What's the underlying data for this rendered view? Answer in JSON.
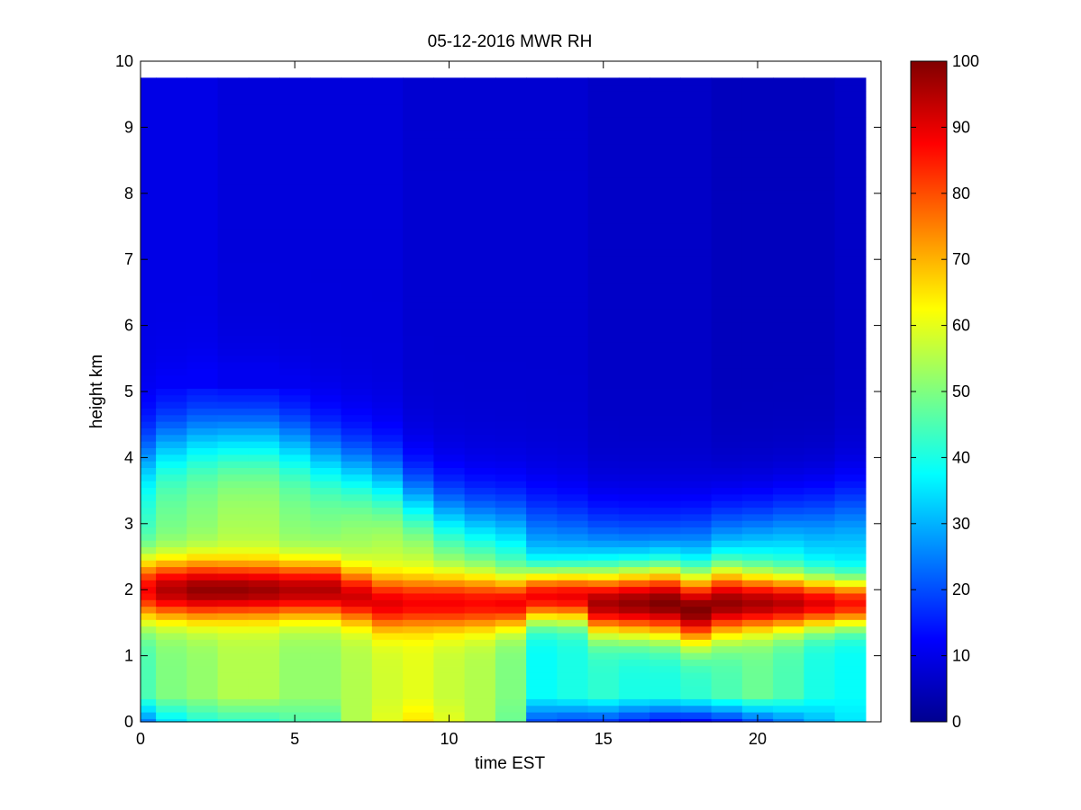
{
  "chart_data": {
    "type": "heatmap",
    "title": "05-12-2016 MWR RH",
    "xlabel": "time EST",
    "ylabel": "height km",
    "xlim": [
      0,
      24
    ],
    "ylim": [
      0,
      10
    ],
    "x_ticks": [
      "0",
      "5",
      "10",
      "15",
      "20"
    ],
    "y_ticks": [
      "0",
      "1",
      "2",
      "3",
      "4",
      "5",
      "6",
      "7",
      "8",
      "9",
      "10"
    ],
    "colorbar": {
      "colormap": "jet",
      "range": [
        0,
        100
      ],
      "ticks": [
        "0",
        "10",
        "20",
        "30",
        "40",
        "50",
        "60",
        "70",
        "80",
        "90",
        "100"
      ]
    },
    "grid": false,
    "time_hours": [
      0,
      1,
      2,
      3,
      4,
      5,
      6,
      7,
      8,
      9,
      10,
      11,
      12,
      13,
      14,
      15,
      16,
      17,
      18,
      19,
      20,
      21,
      22,
      23
    ],
    "heights_km": [
      0,
      0.1,
      0.2,
      0.3,
      0.4,
      0.5,
      0.6,
      0.7,
      0.8,
      0.9,
      1,
      1.1,
      1.2,
      1.3,
      1.4,
      1.5,
      1.6,
      1.7,
      1.8,
      1.9,
      2,
      2.1,
      2.2,
      2.3,
      2.4,
      2.5,
      2.6,
      2.7,
      2.8,
      2.9,
      3,
      3.1,
      3.2,
      3.3,
      3.4,
      3.5,
      3.6,
      3.7,
      3.8,
      3.9,
      4,
      4.1,
      4.2,
      4.3,
      4.4,
      4.5,
      4.6,
      4.7,
      4.8,
      4.9,
      5,
      5.1,
      5.2,
      5.3,
      5.4,
      5.5,
      5.6,
      5.7,
      5.8,
      5.9,
      6,
      6.1,
      6.2,
      6.3,
      6.4,
      6.5,
      6.6,
      6.7,
      6.8,
      6.9,
      7,
      7.1,
      7.2,
      7.3,
      7.4,
      7.5,
      7.6,
      7.7,
      7.8,
      7.9,
      8,
      8.1,
      8.2,
      8.3,
      8.4,
      8.5,
      8.6,
      8.7,
      8.8,
      8.9,
      9,
      9.1,
      9.2,
      9.3,
      9.4,
      9.5,
      9.6,
      9.7
    ],
    "profile_parameters_by_hour": {
      "note_fields": [
        "surface_rh",
        "peak_rh",
        "peak_height_km",
        "peak_thickness_km",
        "low_layer_rh",
        "upper_rh",
        "transition_height_km"
      ],
      "values": [
        [
          25,
          88,
          2.0,
          0.48,
          45,
          10,
          4.0
        ],
        [
          35,
          95,
          2.0,
          0.45,
          50,
          10,
          4.2
        ],
        [
          40,
          98,
          2.0,
          0.45,
          52,
          10,
          4.3
        ],
        [
          42,
          98,
          2.0,
          0.42,
          55,
          9,
          4.3
        ],
        [
          42,
          97,
          2.0,
          0.42,
          55,
          9,
          4.3
        ],
        [
          45,
          95,
          2.0,
          0.42,
          52,
          9,
          4.2
        ],
        [
          45,
          95,
          2.0,
          0.42,
          52,
          9,
          4.0
        ],
        [
          55,
          92,
          1.9,
          0.4,
          55,
          9,
          3.8
        ],
        [
          60,
          90,
          1.8,
          0.4,
          58,
          9,
          3.6
        ],
        [
          65,
          88,
          1.8,
          0.38,
          60,
          8,
          3.3
        ],
        [
          60,
          88,
          1.8,
          0.4,
          57,
          8,
          3.1
        ],
        [
          55,
          87,
          1.8,
          0.4,
          55,
          8,
          3.0
        ],
        [
          48,
          88,
          1.8,
          0.38,
          50,
          8,
          3.0
        ],
        [
          20,
          88,
          1.9,
          0.38,
          38,
          8,
          3.0
        ],
        [
          18,
          89,
          1.9,
          0.38,
          40,
          8,
          2.9
        ],
        [
          18,
          96,
          1.8,
          0.45,
          42,
          7,
          2.8
        ],
        [
          15,
          98,
          1.8,
          0.48,
          40,
          7,
          2.8
        ],
        [
          12,
          100,
          1.8,
          0.5,
          40,
          7,
          2.8
        ],
        [
          12,
          100,
          1.7,
          0.5,
          42,
          7,
          2.8
        ],
        [
          15,
          98,
          1.8,
          0.48,
          45,
          6,
          2.9
        ],
        [
          20,
          96,
          1.8,
          0.42,
          48,
          6,
          2.9
        ],
        [
          25,
          94,
          1.8,
          0.4,
          45,
          6,
          3.0
        ],
        [
          30,
          90,
          1.8,
          0.38,
          40,
          6,
          3.1
        ],
        [
          35,
          86,
          1.8,
          0.36,
          38,
          7,
          3.2
        ]
      ]
    }
  }
}
